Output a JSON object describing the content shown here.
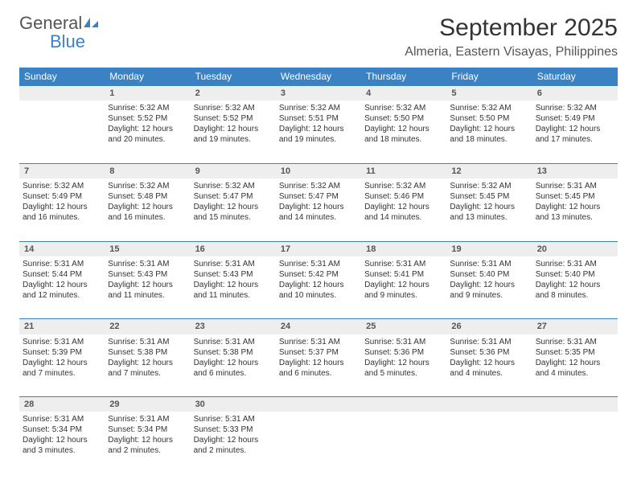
{
  "logo": {
    "text_general": "General",
    "text_blue": "Blue"
  },
  "title": "September 2025",
  "location": "Almeria, Eastern Visayas, Philippines",
  "colors": {
    "header_bg": "#3b82c4",
    "header_text": "#ffffff",
    "daynum_bg": "#eeeeee",
    "text": "#333333",
    "page_bg": "#ffffff",
    "sep_border": "#3b82c4"
  },
  "typography": {
    "title_fontsize": 30,
    "location_fontsize": 16,
    "dayheader_fontsize": 12,
    "cell_fontsize": 10,
    "logo_fontsize": 22
  },
  "day_headers": [
    "Sunday",
    "Monday",
    "Tuesday",
    "Wednesday",
    "Thursday",
    "Friday",
    "Saturday"
  ],
  "weeks": [
    {
      "nums": [
        "",
        "1",
        "2",
        "3",
        "4",
        "5",
        "6"
      ],
      "cells": [
        null,
        {
          "sunrise": "Sunrise: 5:32 AM",
          "sunset": "Sunset: 5:52 PM",
          "daylight": "Daylight: 12 hours and 20 minutes."
        },
        {
          "sunrise": "Sunrise: 5:32 AM",
          "sunset": "Sunset: 5:52 PM",
          "daylight": "Daylight: 12 hours and 19 minutes."
        },
        {
          "sunrise": "Sunrise: 5:32 AM",
          "sunset": "Sunset: 5:51 PM",
          "daylight": "Daylight: 12 hours and 19 minutes."
        },
        {
          "sunrise": "Sunrise: 5:32 AM",
          "sunset": "Sunset: 5:50 PM",
          "daylight": "Daylight: 12 hours and 18 minutes."
        },
        {
          "sunrise": "Sunrise: 5:32 AM",
          "sunset": "Sunset: 5:50 PM",
          "daylight": "Daylight: 12 hours and 18 minutes."
        },
        {
          "sunrise": "Sunrise: 5:32 AM",
          "sunset": "Sunset: 5:49 PM",
          "daylight": "Daylight: 12 hours and 17 minutes."
        }
      ]
    },
    {
      "nums": [
        "7",
        "8",
        "9",
        "10",
        "11",
        "12",
        "13"
      ],
      "cells": [
        {
          "sunrise": "Sunrise: 5:32 AM",
          "sunset": "Sunset: 5:49 PM",
          "daylight": "Daylight: 12 hours and 16 minutes."
        },
        {
          "sunrise": "Sunrise: 5:32 AM",
          "sunset": "Sunset: 5:48 PM",
          "daylight": "Daylight: 12 hours and 16 minutes."
        },
        {
          "sunrise": "Sunrise: 5:32 AM",
          "sunset": "Sunset: 5:47 PM",
          "daylight": "Daylight: 12 hours and 15 minutes."
        },
        {
          "sunrise": "Sunrise: 5:32 AM",
          "sunset": "Sunset: 5:47 PM",
          "daylight": "Daylight: 12 hours and 14 minutes."
        },
        {
          "sunrise": "Sunrise: 5:32 AM",
          "sunset": "Sunset: 5:46 PM",
          "daylight": "Daylight: 12 hours and 14 minutes."
        },
        {
          "sunrise": "Sunrise: 5:32 AM",
          "sunset": "Sunset: 5:45 PM",
          "daylight": "Daylight: 12 hours and 13 minutes."
        },
        {
          "sunrise": "Sunrise: 5:31 AM",
          "sunset": "Sunset: 5:45 PM",
          "daylight": "Daylight: 12 hours and 13 minutes."
        }
      ]
    },
    {
      "nums": [
        "14",
        "15",
        "16",
        "17",
        "18",
        "19",
        "20"
      ],
      "cells": [
        {
          "sunrise": "Sunrise: 5:31 AM",
          "sunset": "Sunset: 5:44 PM",
          "daylight": "Daylight: 12 hours and 12 minutes."
        },
        {
          "sunrise": "Sunrise: 5:31 AM",
          "sunset": "Sunset: 5:43 PM",
          "daylight": "Daylight: 12 hours and 11 minutes."
        },
        {
          "sunrise": "Sunrise: 5:31 AM",
          "sunset": "Sunset: 5:43 PM",
          "daylight": "Daylight: 12 hours and 11 minutes."
        },
        {
          "sunrise": "Sunrise: 5:31 AM",
          "sunset": "Sunset: 5:42 PM",
          "daylight": "Daylight: 12 hours and 10 minutes."
        },
        {
          "sunrise": "Sunrise: 5:31 AM",
          "sunset": "Sunset: 5:41 PM",
          "daylight": "Daylight: 12 hours and 9 minutes."
        },
        {
          "sunrise": "Sunrise: 5:31 AM",
          "sunset": "Sunset: 5:40 PM",
          "daylight": "Daylight: 12 hours and 9 minutes."
        },
        {
          "sunrise": "Sunrise: 5:31 AM",
          "sunset": "Sunset: 5:40 PM",
          "daylight": "Daylight: 12 hours and 8 minutes."
        }
      ]
    },
    {
      "nums": [
        "21",
        "22",
        "23",
        "24",
        "25",
        "26",
        "27"
      ],
      "cells": [
        {
          "sunrise": "Sunrise: 5:31 AM",
          "sunset": "Sunset: 5:39 PM",
          "daylight": "Daylight: 12 hours and 7 minutes."
        },
        {
          "sunrise": "Sunrise: 5:31 AM",
          "sunset": "Sunset: 5:38 PM",
          "daylight": "Daylight: 12 hours and 7 minutes."
        },
        {
          "sunrise": "Sunrise: 5:31 AM",
          "sunset": "Sunset: 5:38 PM",
          "daylight": "Daylight: 12 hours and 6 minutes."
        },
        {
          "sunrise": "Sunrise: 5:31 AM",
          "sunset": "Sunset: 5:37 PM",
          "daylight": "Daylight: 12 hours and 6 minutes."
        },
        {
          "sunrise": "Sunrise: 5:31 AM",
          "sunset": "Sunset: 5:36 PM",
          "daylight": "Daylight: 12 hours and 5 minutes."
        },
        {
          "sunrise": "Sunrise: 5:31 AM",
          "sunset": "Sunset: 5:36 PM",
          "daylight": "Daylight: 12 hours and 4 minutes."
        },
        {
          "sunrise": "Sunrise: 5:31 AM",
          "sunset": "Sunset: 5:35 PM",
          "daylight": "Daylight: 12 hours and 4 minutes."
        }
      ]
    },
    {
      "nums": [
        "28",
        "29",
        "30",
        "",
        "",
        "",
        ""
      ],
      "cells": [
        {
          "sunrise": "Sunrise: 5:31 AM",
          "sunset": "Sunset: 5:34 PM",
          "daylight": "Daylight: 12 hours and 3 minutes."
        },
        {
          "sunrise": "Sunrise: 5:31 AM",
          "sunset": "Sunset: 5:34 PM",
          "daylight": "Daylight: 12 hours and 2 minutes."
        },
        {
          "sunrise": "Sunrise: 5:31 AM",
          "sunset": "Sunset: 5:33 PM",
          "daylight": "Daylight: 12 hours and 2 minutes."
        },
        null,
        null,
        null,
        null
      ]
    }
  ]
}
